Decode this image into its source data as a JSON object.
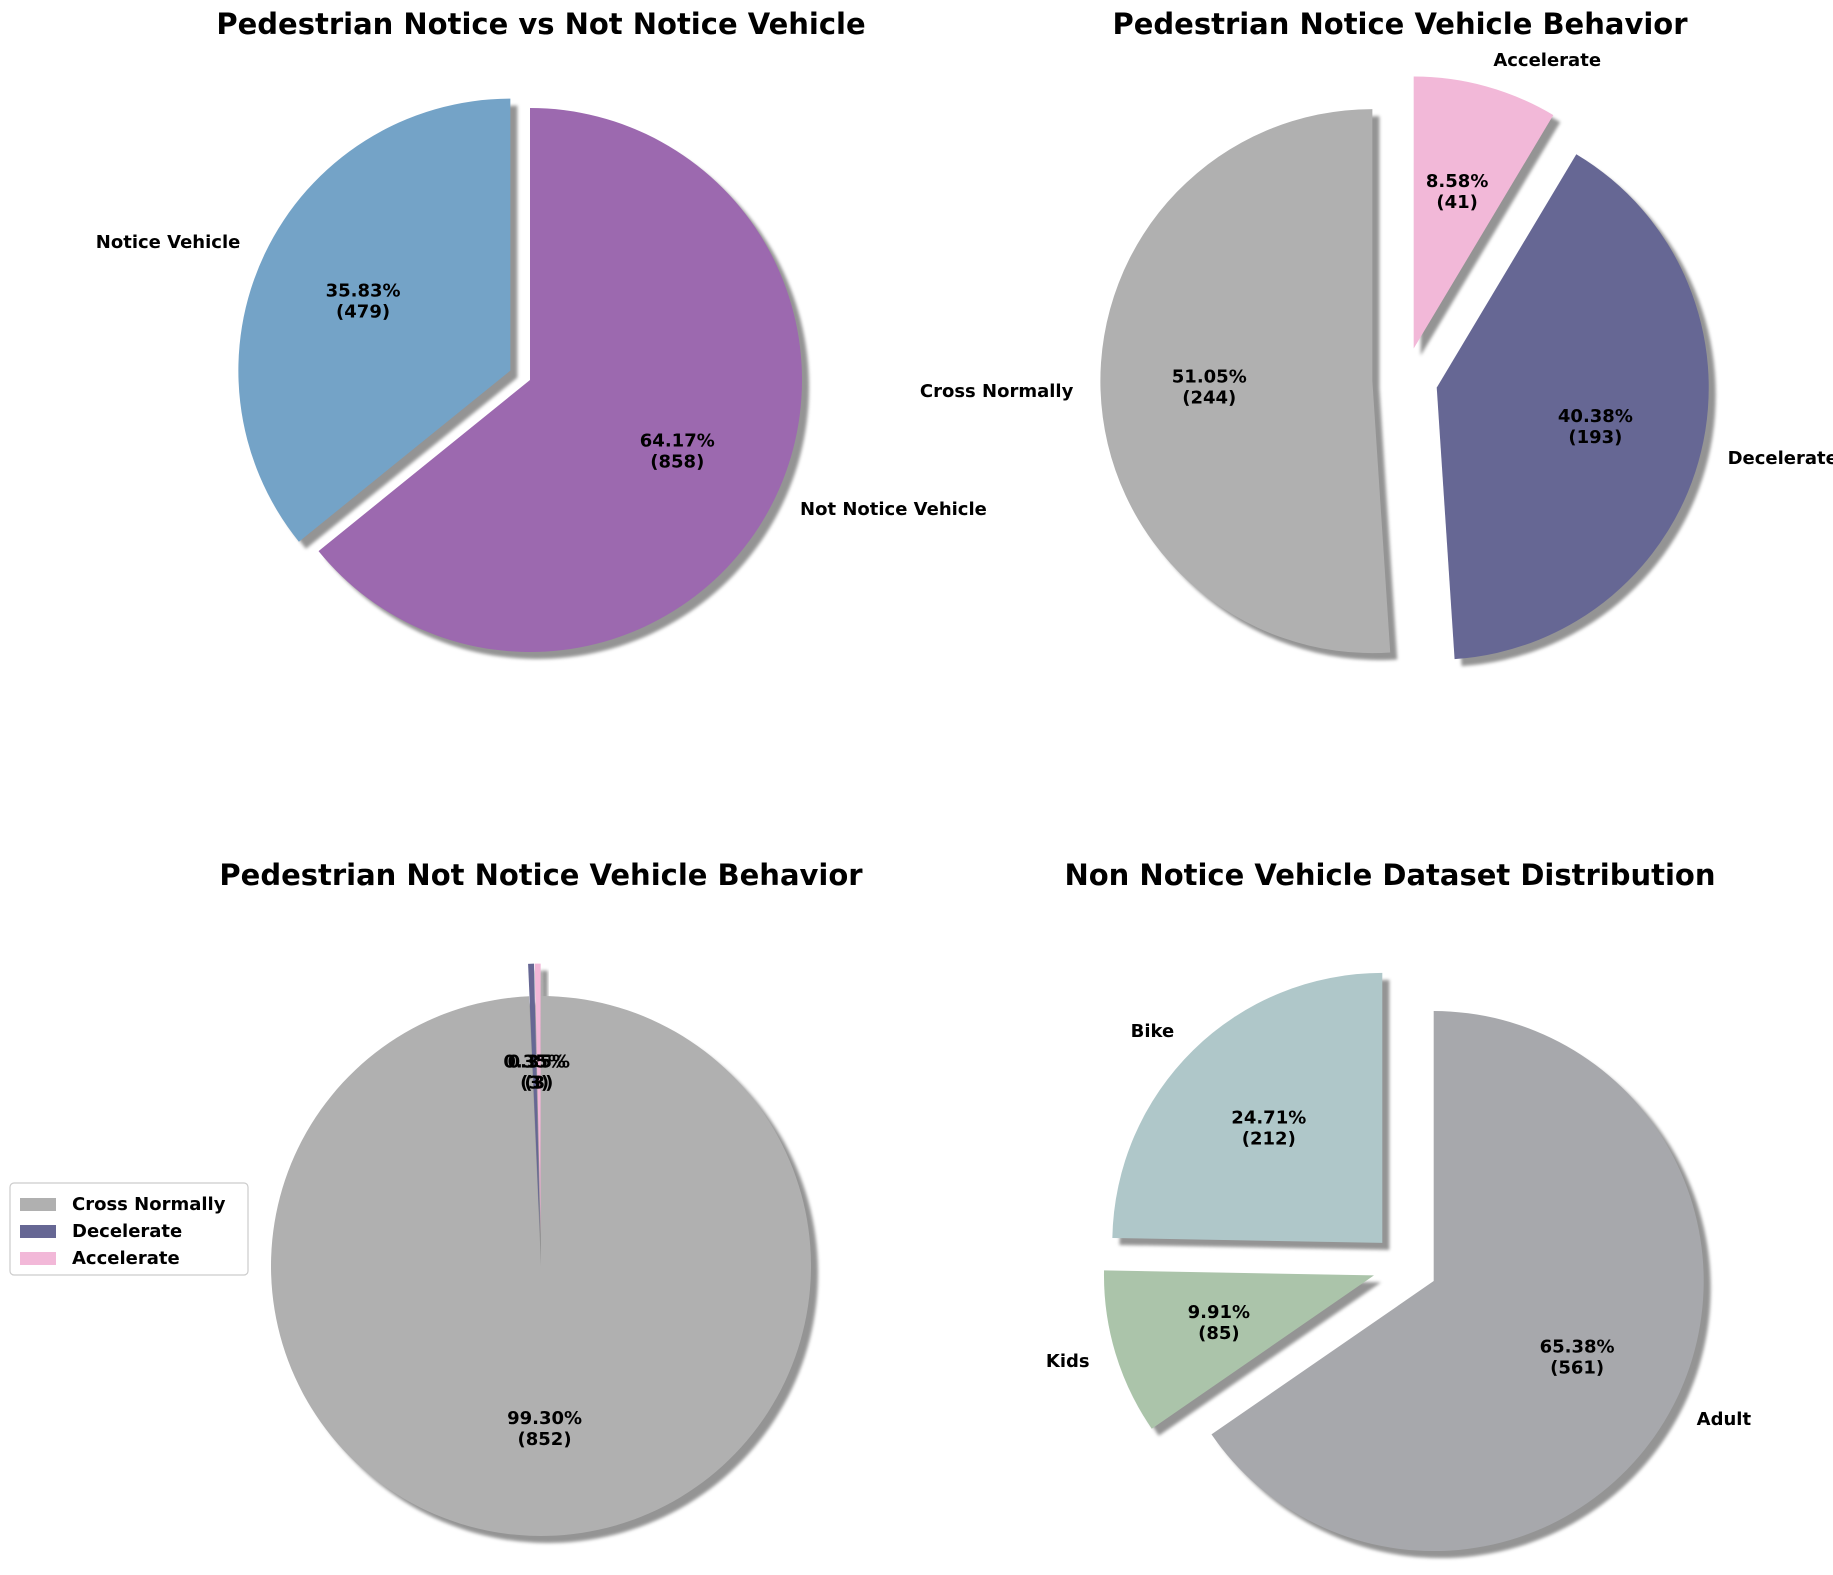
{
  "chart_data": [
    {
      "type": "pie",
      "title": "Pedestrian Notice vs Not Notice Vehicle",
      "slices": [
        {
          "label": "Notice Vehicle",
          "value": 479,
          "percent": "35.83%",
          "color": "#74a3c7",
          "explode": true
        },
        {
          "label": "Not Notice Vehicle",
          "value": 858,
          "percent": "64.17%",
          "color": "#9c69af",
          "explode": false
        }
      ],
      "start_angle": 90,
      "direction": "counterclockwise",
      "shadow": true,
      "show_labels": true,
      "legend": ""
    },
    {
      "type": "pie",
      "title": "Pedestrian Notice Vehicle Behavior",
      "slices": [
        {
          "label": "Cross Normally",
          "value": 244,
          "percent": "51.05%",
          "color": "#b0b0b0",
          "explode": true
        },
        {
          "label": "Decelerate",
          "value": 193,
          "percent": "40.38%",
          "color": "#666794",
          "explode": true
        },
        {
          "label": "Accelerate",
          "value": 41,
          "percent": "8.58%",
          "color": "#f2b8d8",
          "explode": true
        }
      ],
      "start_angle": 90,
      "direction": "counterclockwise",
      "shadow": true,
      "show_labels": true,
      "legend": ""
    },
    {
      "type": "pie",
      "title": "Pedestrian Not Notice Vehicle Behavior",
      "slices": [
        {
          "label": "Cross Normally",
          "value": 852,
          "percent": "99.30%",
          "color": "#b0b0b0",
          "explode": false
        },
        {
          "label": "Decelerate",
          "value": 3,
          "percent": "0.35%",
          "color": "#666794",
          "explode": true
        },
        {
          "label": "Accelerate",
          "value": 3,
          "percent": "0.35%",
          "color": "#f2b8d8",
          "explode": true
        }
      ],
      "start_angle": 90,
      "direction": "clockwise",
      "shadow": true,
      "show_labels": false,
      "legend": "left",
      "legend_entries": [
        "Cross Normally",
        "Decelerate",
        "Accelerate"
      ]
    },
    {
      "type": "pie",
      "title": "Non Notice Vehicle Dataset Distribution",
      "slices": [
        {
          "label": "Bike",
          "value": 212,
          "percent": "24.71%",
          "color": "#afc7c9",
          "explode": true
        },
        {
          "label": "Kids",
          "value": 85,
          "percent": "9.91%",
          "color": "#abc4aa",
          "explode": true
        },
        {
          "label": "Adult",
          "value": 561,
          "percent": "65.38%",
          "color": "#a7a8ac",
          "explode": true
        }
      ],
      "start_angle": 90,
      "direction": "counterclockwise",
      "shadow": true,
      "show_labels": true,
      "legend": ""
    }
  ]
}
